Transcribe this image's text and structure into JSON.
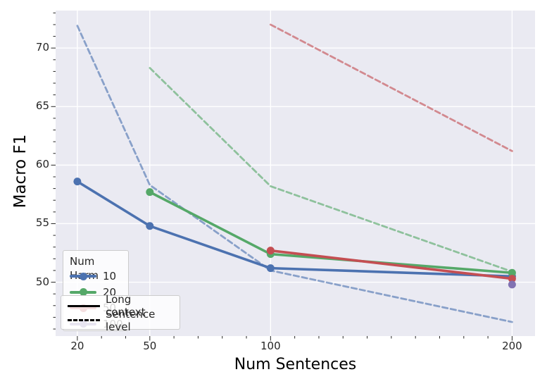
{
  "chart_data": {
    "type": "line",
    "title": "",
    "xlabel": "Num Sentences",
    "ylabel": "Macro F1",
    "xlim": [
      11,
      209.5
    ],
    "ylim": [
      45.4,
      73.2
    ],
    "x_major_ticks": [
      20,
      50,
      100,
      200
    ],
    "x_tick_labels": [
      "20",
      "50",
      "100",
      "200"
    ],
    "x_minor_step": 10,
    "y_major_ticks": [
      50,
      55,
      60,
      65,
      70
    ],
    "y_tick_labels": [
      "50",
      "55",
      "60",
      "65",
      "70"
    ],
    "y_minor_step": 1,
    "grid": true,
    "plot_bg_color": "#eaeaf2",
    "grid_color": "#ffffff",
    "tick_color": "#262626",
    "series": [
      {
        "name": "harm-10-sentence-level",
        "num_harm": "10",
        "context": "Sentence level",
        "style": "dashed",
        "color": "#4c72b0",
        "x": [
          20,
          50,
          100,
          200
        ],
        "y": [
          71.9,
          58.3,
          51.0,
          46.6
        ]
      },
      {
        "name": "harm-10-long-context",
        "num_harm": "10",
        "context": "Long context",
        "style": "solid",
        "color": "#4c72b0",
        "x": [
          20,
          50,
          100,
          200
        ],
        "y": [
          58.6,
          54.8,
          51.2,
          50.5
        ]
      },
      {
        "name": "harm-20-sentence-level",
        "num_harm": "20",
        "context": "Sentence level",
        "style": "dashed",
        "color": "#55a868",
        "x": [
          50,
          100,
          200
        ],
        "y": [
          68.3,
          58.2,
          50.9
        ]
      },
      {
        "name": "harm-20-long-context",
        "num_harm": "20",
        "context": "Long context",
        "style": "solid",
        "color": "#55a868",
        "x": [
          50,
          100,
          200
        ],
        "y": [
          57.7,
          52.4,
          50.8
        ]
      },
      {
        "name": "harm-50-sentence-level",
        "num_harm": "50",
        "context": "Sentence level",
        "style": "dashed",
        "color": "#c44e52",
        "x": [
          100,
          200
        ],
        "y": [
          72.0,
          61.2
        ]
      },
      {
        "name": "harm-50-long-context",
        "num_harm": "50",
        "context": "Long context",
        "style": "solid",
        "color": "#c44e52",
        "x": [
          100,
          200
        ],
        "y": [
          52.7,
          50.3
        ]
      },
      {
        "name": "harm-100-long-context",
        "num_harm": "100",
        "context": "Long context",
        "style": "solid",
        "color": "#8172b2",
        "x": [
          200
        ],
        "y": [
          49.8
        ]
      }
    ],
    "legend_harm": {
      "title": "Num Harm",
      "entries": [
        {
          "label": "10",
          "color": "#4c72b0"
        },
        {
          "label": "20",
          "color": "#55a868"
        },
        {
          "label": "50",
          "color": "#c44e52"
        },
        {
          "label": "100",
          "color": "#8172b2"
        }
      ]
    },
    "legend_style": {
      "entries": [
        {
          "label": "Long context",
          "style": "solid",
          "color": "#000000"
        },
        {
          "label": "Sentence level",
          "style": "dashed",
          "color": "#000000"
        }
      ]
    }
  }
}
